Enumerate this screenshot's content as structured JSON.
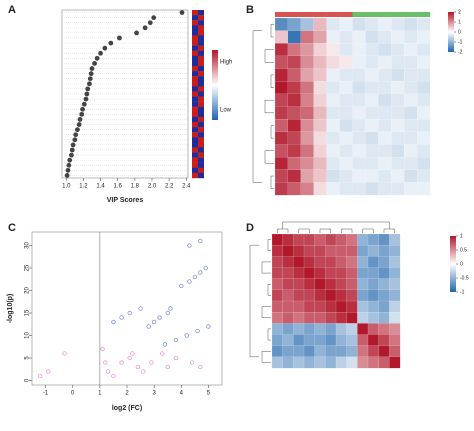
{
  "chart_data": [
    {
      "type": "dot",
      "label": "A",
      "xlabel": "VIP Scores",
      "color": "#444444",
      "xlim": [
        0.95,
        2.42
      ],
      "xticks": [
        {
          "value": 1,
          "label": "1.0"
        },
        1.2,
        1.4,
        1.6,
        1.8,
        {
          "value": 2,
          "label": "2.0"
        },
        2.2,
        2.4
      ],
      "categories": [
        null,
        null,
        null,
        null,
        null,
        null,
        null,
        null,
        null,
        null,
        null,
        null,
        null,
        null,
        null,
        null,
        null,
        null,
        null,
        null,
        null,
        null,
        null,
        null,
        null,
        null,
        null,
        null,
        null,
        null,
        null,
        null,
        null
      ],
      "values": [
        2.35,
        2.02,
        1.98,
        1.92,
        1.82,
        1.62,
        1.52,
        1.45,
        1.4,
        1.36,
        1.33,
        1.3,
        1.29,
        1.28,
        1.27,
        1.25,
        1.24,
        1.23,
        1.21,
        1.19,
        1.18,
        1.16,
        1.15,
        1.13,
        1.11,
        1.1,
        1.08,
        1.07,
        1.06,
        1.04,
        1.03,
        1.02,
        1.01
      ],
      "group_matrix": [
        [
          1,
          0
        ],
        [
          0,
          1
        ],
        [
          1,
          0
        ],
        [
          0,
          1
        ],
        [
          0,
          1
        ],
        [
          1,
          0
        ],
        [
          1,
          0
        ],
        [
          0,
          1
        ],
        [
          1,
          0
        ],
        [
          0,
          1
        ],
        [
          0,
          1
        ],
        [
          1,
          0
        ],
        [
          0,
          1
        ],
        [
          1,
          0
        ],
        [
          1,
          0
        ],
        [
          0,
          1
        ],
        [
          1,
          0
        ],
        [
          0,
          1
        ],
        [
          0,
          1
        ],
        [
          1,
          0
        ],
        [
          1,
          0
        ],
        [
          0,
          1
        ],
        [
          1,
          0
        ],
        [
          0,
          1
        ],
        [
          1,
          0
        ],
        [
          0,
          1
        ],
        [
          0,
          1
        ],
        [
          1,
          0
        ],
        [
          0,
          1
        ],
        [
          1,
          0
        ],
        [
          1,
          0
        ],
        [
          0,
          1
        ],
        [
          1,
          0
        ]
      ],
      "high_color": "#c81e1e",
      "low_color": "#1e2d9a",
      "legend_high": "High",
      "legend_low": "Low"
    },
    {
      "type": "heatmap",
      "label": "B",
      "zlim": [
        -2,
        2
      ],
      "zticks": [
        2,
        1,
        0,
        -1,
        -2
      ],
      "col_groups": [
        0,
        0,
        0,
        0,
        0,
        0,
        1,
        1,
        1,
        1,
        1,
        1
      ],
      "group_colors": [
        "#d9534f",
        "#6abf69"
      ],
      "matrix": [
        [
          -1.5,
          -1.2,
          -0.8,
          0.6,
          -0.3,
          -0.2,
          -0.4,
          -0.3,
          -0.2,
          -0.3,
          -0.4,
          -0.3
        ],
        [
          0.5,
          -1.8,
          1.2,
          0.8,
          -0.2,
          -0.3,
          -0.2,
          -0.4,
          -0.3,
          -0.2,
          -0.3,
          -0.2
        ],
        [
          1.8,
          1.2,
          0.9,
          0.4,
          0.2,
          -0.3,
          -0.2,
          -0.3,
          -0.4,
          -0.3,
          -0.2,
          -0.3
        ],
        [
          1.5,
          1.6,
          1.0,
          0.6,
          0.3,
          0.2,
          -0.2,
          -0.3,
          -0.2,
          -0.3,
          -0.3,
          -0.2
        ],
        [
          1.9,
          1.4,
          0.8,
          0.5,
          -0.2,
          -0.3,
          -0.3,
          -0.2,
          -0.3,
          -0.4,
          -0.3,
          -0.3
        ],
        [
          2.0,
          1.7,
          1.2,
          0.3,
          -0.3,
          -0.2,
          -0.4,
          -0.3,
          -0.3,
          -0.2,
          -0.3,
          -0.4
        ],
        [
          1.6,
          1.8,
          1.1,
          0.4,
          -0.2,
          -0.3,
          -0.3,
          -0.2,
          -0.4,
          -0.3,
          -0.2,
          -0.3
        ],
        [
          1.7,
          1.5,
          1.3,
          0.6,
          -0.3,
          -0.3,
          -0.2,
          -0.3,
          -0.3,
          -0.3,
          -0.4,
          -0.2
        ],
        [
          1.4,
          1.9,
          1.0,
          0.5,
          -0.2,
          -0.4,
          -0.3,
          -0.2,
          -0.3,
          -0.2,
          -0.3,
          -0.3
        ],
        [
          1.8,
          1.6,
          0.9,
          0.3,
          -0.3,
          -0.2,
          -0.3,
          -0.4,
          -0.2,
          -0.3,
          -0.3,
          -0.2
        ],
        [
          1.5,
          1.7,
          1.2,
          0.4,
          -0.2,
          -0.3,
          -0.2,
          -0.3,
          -0.3,
          -0.4,
          -0.2,
          -0.3
        ],
        [
          1.9,
          1.3,
          1.0,
          0.6,
          -0.3,
          -0.2,
          -0.3,
          -0.3,
          -0.2,
          -0.3,
          -0.3,
          -0.4
        ],
        [
          1.6,
          1.8,
          0.8,
          0.5,
          -0.4,
          -0.3,
          -0.2,
          -0.2,
          -0.3,
          -0.2,
          -0.4,
          -0.3
        ],
        [
          1.7,
          1.4,
          1.1,
          0.3,
          -0.2,
          -0.3,
          -0.3,
          -0.4,
          -0.3,
          -0.3,
          -0.2,
          -0.2
        ]
      ]
    },
    {
      "type": "scatter",
      "label": "C",
      "xlabel": "log2 (FC)",
      "ylabel": "-log10(p)",
      "xlim": [
        -1.5,
        5.5
      ],
      "xticks": [
        -1,
        0,
        1,
        2,
        3,
        4,
        5
      ],
      "ylim": [
        -1,
        33
      ],
      "yticks": [
        0,
        5,
        10,
        15,
        20,
        25,
        30
      ],
      "threshold_x": 1,
      "series": [
        {
          "color": "#e08ad6",
          "x": [
            -1.2,
            -0.9,
            -0.3,
            1.2,
            1.3,
            1.5,
            2.1,
            2.4,
            2.6,
            2.9,
            3.3,
            3.5,
            3.8,
            4.4,
            4.7,
            1.1,
            1.8,
            2.2
          ],
          "y": [
            1,
            2,
            6,
            4,
            2,
            1,
            5,
            3,
            2,
            4,
            6,
            3,
            5,
            4,
            3,
            7,
            4,
            6
          ]
        },
        {
          "color": "#6a7fd8",
          "x": [
            2.8,
            3.0,
            3.2,
            3.5,
            3.6,
            4.0,
            4.3,
            4.5,
            4.7,
            4.9,
            3.4,
            3.8,
            4.2,
            4.6,
            5.0,
            1.5,
            1.8,
            2.1,
            2.5,
            4.3,
            4.7
          ],
          "y": [
            12,
            13,
            14,
            15,
            16,
            21,
            22,
            23,
            24,
            25,
            8,
            9,
            10,
            11,
            12,
            13,
            14,
            15,
            16,
            30,
            31
          ]
        }
      ]
    },
    {
      "type": "heatmap",
      "label": "D",
      "zlim": [
        -1,
        1
      ],
      "zticks": [
        1,
        0.5,
        0,
        -0.5,
        -1
      ],
      "matrix": [
        [
          1,
          0.9,
          0.8,
          0.8,
          0.7,
          0.8,
          0.7,
          0.6,
          -0.5,
          -0.6,
          -0.7,
          -0.4
        ],
        [
          0.9,
          1,
          0.9,
          0.8,
          0.8,
          0.7,
          0.7,
          0.7,
          -0.6,
          -0.5,
          -0.6,
          -0.5
        ],
        [
          0.8,
          0.9,
          1,
          0.9,
          0.8,
          0.8,
          0.7,
          0.6,
          -0.5,
          -0.7,
          -0.6,
          -0.4
        ],
        [
          0.8,
          0.8,
          0.9,
          1,
          0.9,
          0.8,
          0.8,
          0.7,
          -0.6,
          -0.6,
          -0.7,
          -0.5
        ],
        [
          0.7,
          0.8,
          0.8,
          0.9,
          1,
          0.9,
          0.8,
          0.7,
          -0.5,
          -0.6,
          -0.5,
          -0.4
        ],
        [
          0.8,
          0.7,
          0.8,
          0.8,
          0.9,
          1,
          0.9,
          0.8,
          -0.6,
          -0.7,
          -0.6,
          -0.5
        ],
        [
          0.7,
          0.7,
          0.7,
          0.8,
          0.8,
          0.9,
          1,
          0.9,
          -0.4,
          -0.5,
          -0.6,
          -0.3
        ],
        [
          0.6,
          0.7,
          0.6,
          0.7,
          0.7,
          0.8,
          0.9,
          1,
          -0.3,
          -0.4,
          -0.5,
          -0.2
        ],
        [
          -0.5,
          -0.6,
          -0.5,
          -0.6,
          -0.5,
          -0.6,
          -0.4,
          -0.3,
          1,
          0.7,
          0.6,
          0.5
        ],
        [
          -0.6,
          -0.5,
          -0.7,
          -0.6,
          -0.6,
          -0.7,
          -0.5,
          -0.4,
          0.7,
          1,
          0.8,
          0.6
        ],
        [
          -0.7,
          -0.6,
          -0.6,
          -0.7,
          -0.5,
          -0.6,
          -0.6,
          -0.5,
          0.6,
          0.8,
          1,
          0.7
        ],
        [
          -0.4,
          -0.5,
          -0.4,
          -0.5,
          -0.4,
          -0.5,
          -0.3,
          -0.2,
          0.5,
          0.6,
          0.7,
          1
        ]
      ]
    }
  ]
}
